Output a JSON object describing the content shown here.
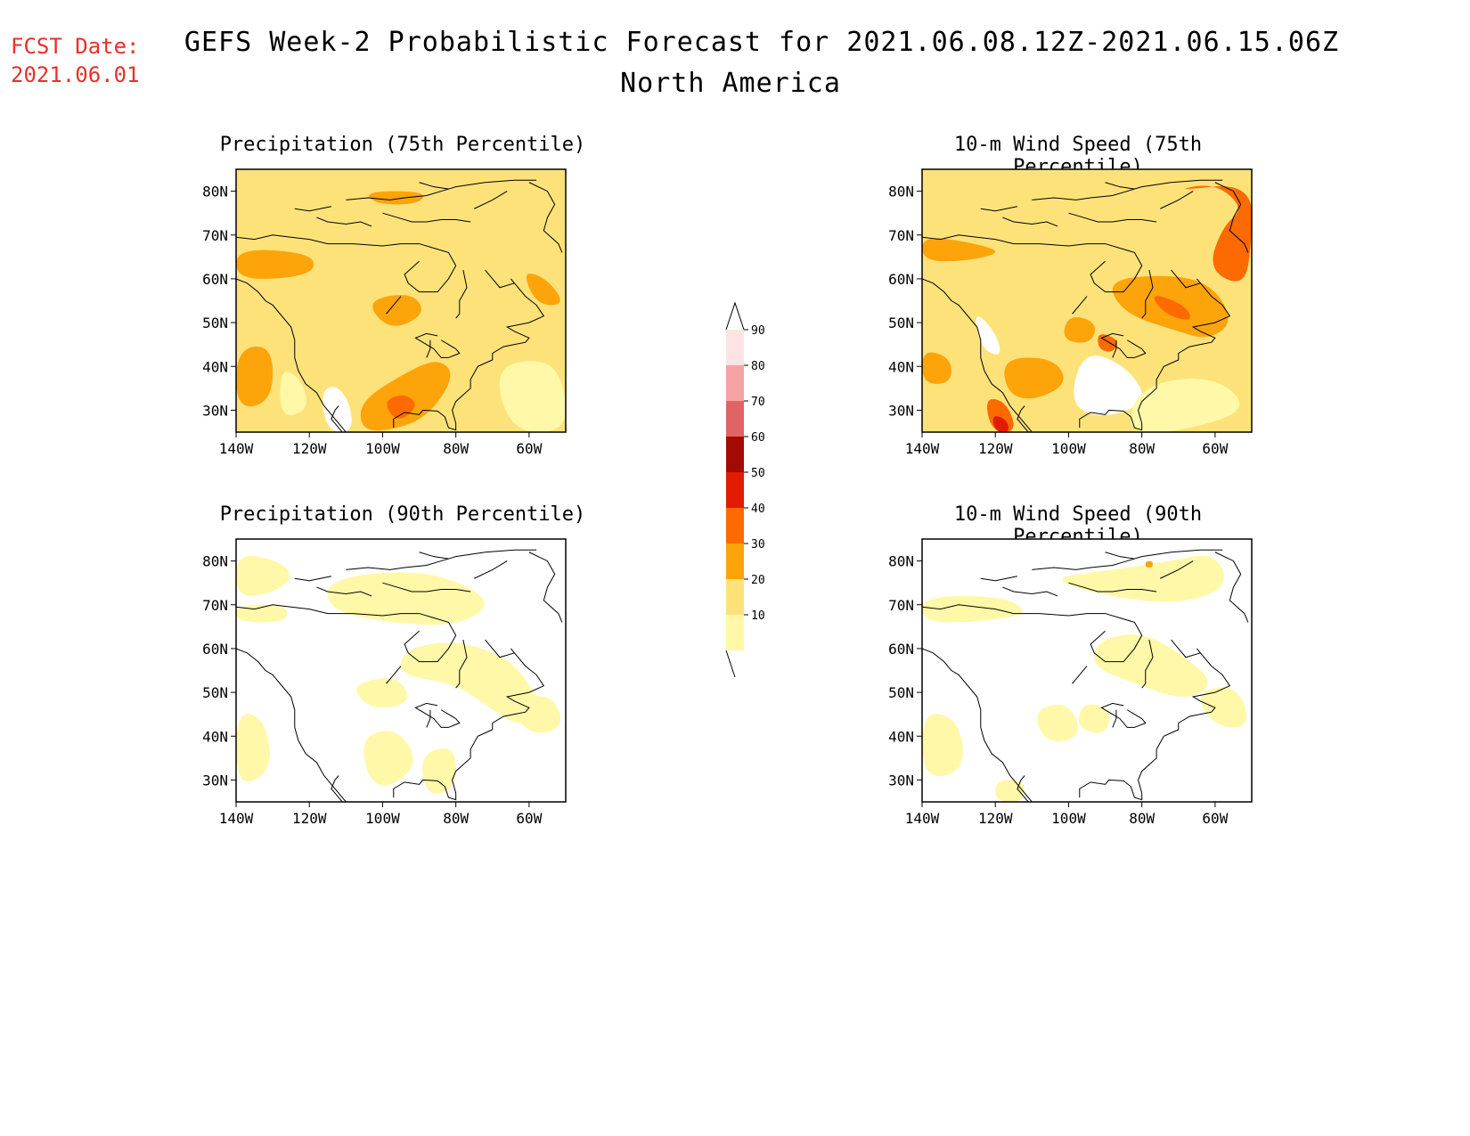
{
  "header": {
    "fcst_label": "FCST Date:",
    "fcst_date": "2021.06.01",
    "title": "GEFS Week-2 Probabilistic Forecast for 2021.06.08.12Z-2021.06.15.06Z",
    "subtitle": "North America"
  },
  "axes": {
    "lat_labels": [
      "80N",
      "70N",
      "60N",
      "50N",
      "40N",
      "30N"
    ],
    "lon_labels": [
      "140W",
      "120W",
      "100W",
      "80W",
      "60W"
    ]
  },
  "panels": [
    {
      "title": "Precipitation (75th Percentile)",
      "field": "precip75"
    },
    {
      "title": "10-m Wind Speed (75th Percentile)",
      "field": "wind75"
    },
    {
      "title": "Precipitation (90th Percentile)",
      "field": "precip90"
    },
    {
      "title": "10-m Wind Speed (90th Percentile)",
      "field": "wind90"
    }
  ],
  "colorbar": {
    "levels": [
      "10",
      "20",
      "30",
      "40",
      "50",
      "60",
      "70",
      "80",
      "90"
    ],
    "colors": [
      "#fff8a8",
      "#fde27a",
      "#fca40a",
      "#fd6a02",
      "#e21b02",
      "#a30a02",
      "#e06464",
      "#f4a4a4",
      "#fde4e4"
    ]
  }
}
